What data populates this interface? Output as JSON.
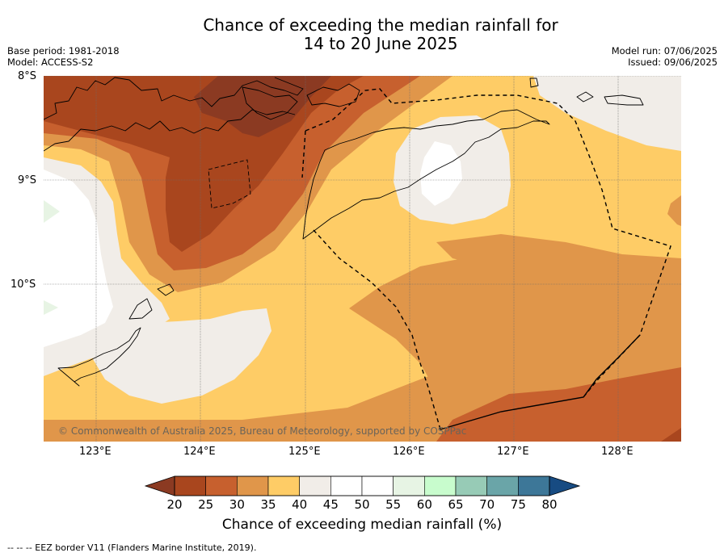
{
  "title": {
    "line1": "Chance of exceeding the median rainfall for",
    "line2": "14 to 20 June 2025"
  },
  "meta": {
    "base_period": "Base period: 1981-2018",
    "model": "Model: ACCESS-S2",
    "model_run": "Model run: 07/06/2025",
    "issued": "Issued: 09/06/2025"
  },
  "map": {
    "lat_labels": [
      "8°S",
      "9°S",
      "10°S"
    ],
    "lon_labels": [
      "123°E",
      "124°E",
      "125°E",
      "126°E",
      "127°E",
      "128°E"
    ],
    "lat_range": [
      -11.5,
      -8.0
    ],
    "lon_range": [
      122.5,
      128.6
    ],
    "copyright": "© Commonwealth of Australia 2025, Bureau of Meteorology, supported by COSPPac"
  },
  "colorbar": {
    "ticks": [
      "20",
      "25",
      "30",
      "35",
      "40",
      "45",
      "50",
      "55",
      "60",
      "65",
      "70",
      "75",
      "80"
    ],
    "under_color": "#8b3a22",
    "over_color": "#174b82",
    "colors": [
      "#a9461e",
      "#c7602e",
      "#e0964a",
      "#fecc66",
      "#f1ede8",
      "#ffffff",
      "#ffffff",
      "#e7f4e4",
      "#c8fccd",
      "#97cbb6",
      "#6aa5a8",
      "#3d7798"
    ],
    "label": "Chance of exceeding median rainfall (%)"
  },
  "footnote": "-- -- -- EEZ border V11 (Flanders Marine Institute, 2019)."
}
